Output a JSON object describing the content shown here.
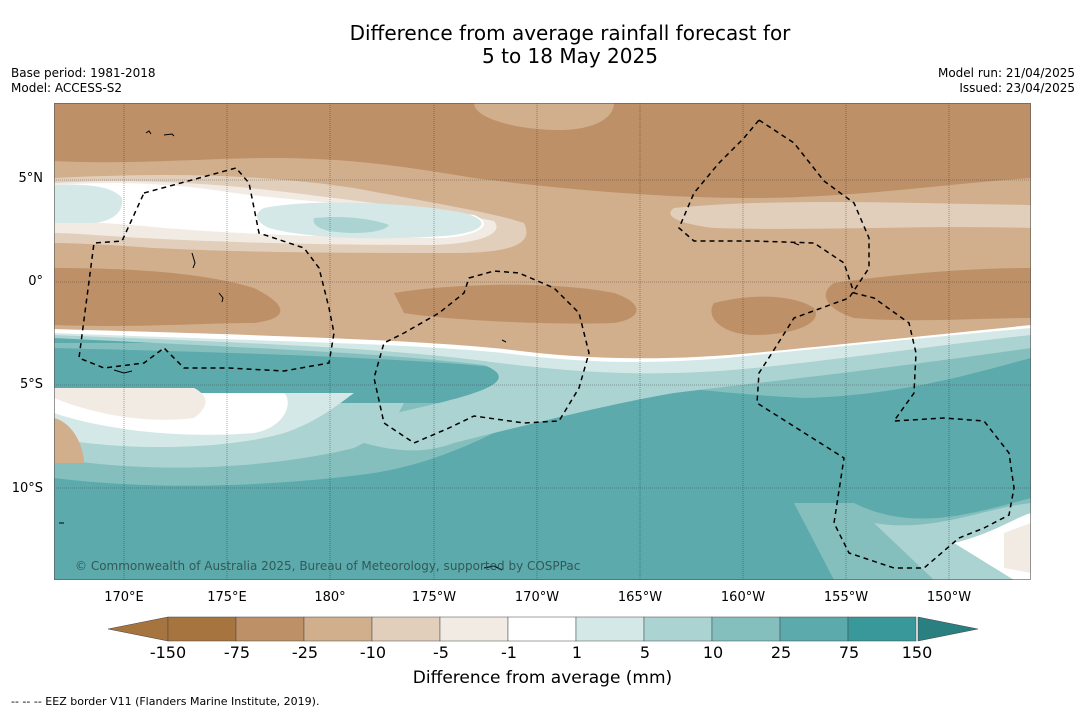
{
  "header": {
    "title_line1": "Difference from average rainfall forecast for",
    "title_line2": "5 to 18 May 2025",
    "base_period": "Base period: 1981-2018",
    "model": "Model: ACCESS-S2",
    "model_run": "Model run: 21/04/2025",
    "issued": "Issued: 23/04/2025"
  },
  "map": {
    "lat_labels": [
      "5°N",
      "0°",
      "5°S",
      "10°S"
    ],
    "lon_labels": [
      "170°E",
      "175°E",
      "180°",
      "175°W",
      "170°W",
      "165°W",
      "160°W",
      "155°W",
      "150°W"
    ],
    "copyright": "© Commonwealth of Australia 2025, Bureau of Meteorology, supported by COSPPac"
  },
  "colorbar": {
    "ticks": [
      "-150",
      "-75",
      "-25",
      "-10",
      "-5",
      "-1",
      "1",
      "5",
      "10",
      "25",
      "75",
      "150"
    ],
    "colors": [
      "#a6743f",
      "#bd9068",
      "#d1ae8c",
      "#e2cfbb",
      "#f2ebe4",
      "#ffffff",
      "#d4e9e7",
      "#abd3d1",
      "#84bfbe",
      "#5caaac",
      "#39999a",
      "#2a7f80"
    ],
    "label": "Difference from average (mm)"
  },
  "footer": {
    "eez_legend": "--  --  -- EEZ border V11 (Flanders Marine Institute, 2019)."
  }
}
